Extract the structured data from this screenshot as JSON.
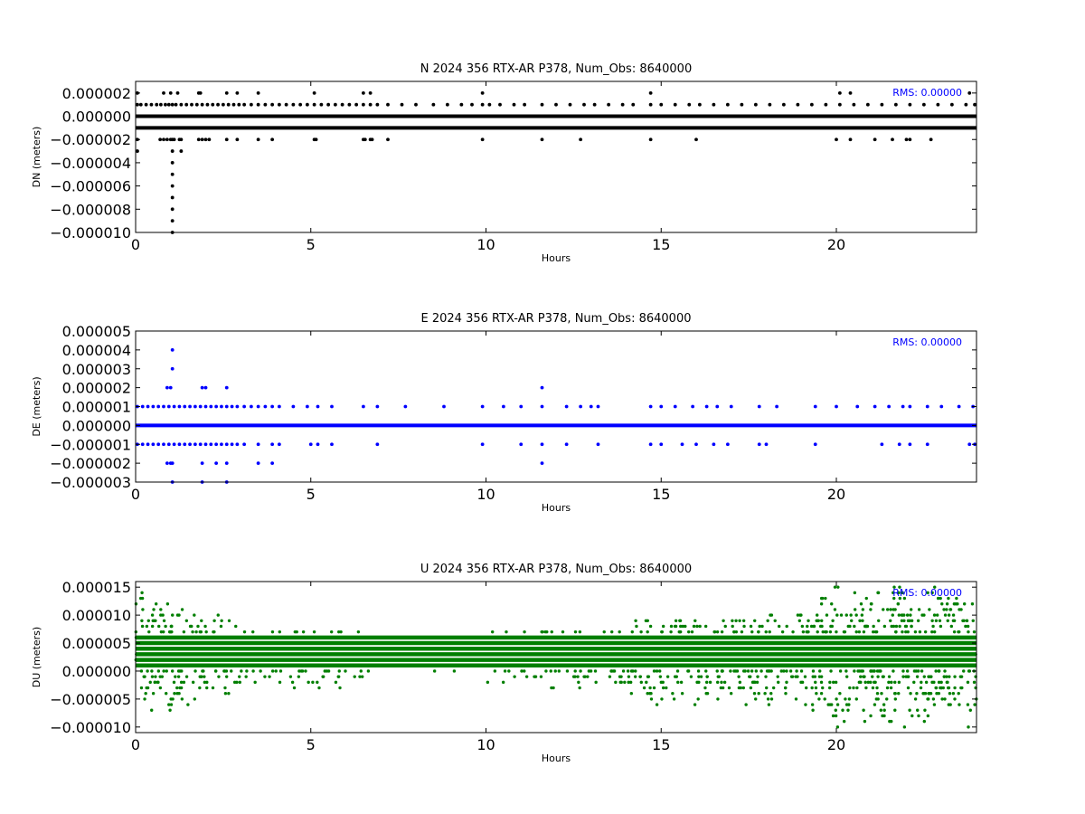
{
  "figure": {
    "background": "#ffffff"
  },
  "chart_data": [
    {
      "type": "scatter",
      "title": "N 2024 356 RTX-AR  P378, Num_Obs: 8640000",
      "xlabel": "Hours",
      "ylabel": "DN (meters)",
      "xlim": [
        0,
        24
      ],
      "ylim": [
        -1e-05,
        3e-06
      ],
      "xticks": [
        0,
        5,
        10,
        15,
        20
      ],
      "xtick_labels": [
        "0",
        "5",
        "10",
        "15",
        "20"
      ],
      "yticks": [
        2e-06,
        0,
        -2e-06,
        -4e-06,
        -6e-06,
        -8e-06,
        -1e-05
      ],
      "ytick_labels": [
        "0.000002",
        "0.000000",
        "−0.000002",
        "−0.000004",
        "−0.000006",
        "−0.000008",
        "−0.000010"
      ],
      "grid": false,
      "color": "#000000",
      "annotation": "RMS:  0.00000",
      "annotation_color": "#0000ff",
      "series": [
        {
          "dense_levels": [
            0,
            -1e-06
          ]
        },
        {
          "sparse": [
            {
              "y": 1e-06,
              "x": [
                0.05,
                0.15,
                0.3,
                0.45,
                0.6,
                0.72,
                0.85,
                0.95,
                1.05,
                1.15,
                1.3,
                1.45,
                1.6,
                1.75,
                1.9,
                2.05,
                2.2,
                2.35,
                2.5,
                2.65,
                2.8,
                2.95,
                3.1,
                3.3,
                3.5,
                3.7,
                3.9,
                4.1,
                4.3,
                4.5,
                4.7,
                4.9,
                5.1,
                5.3,
                5.5,
                5.7,
                5.9,
                6.1,
                6.3,
                6.5,
                6.7,
                6.9,
                7.2,
                7.6,
                8.0,
                8.5,
                8.9,
                9.3,
                9.6,
                9.9,
                10.1,
                10.4,
                10.8,
                11.1,
                11.6,
                12.0,
                12.4,
                12.8,
                13.1,
                13.5,
                13.9,
                14.2,
                14.7,
                15.0,
                15.4,
                15.8,
                16.1,
                16.5,
                16.9,
                17.3,
                17.7,
                18.1,
                18.5,
                18.9,
                19.3,
                19.7,
                20.1,
                20.5,
                20.9,
                21.3,
                21.7,
                22.1,
                22.5,
                22.9,
                23.3,
                23.7,
                23.95
              ]
            },
            {
              "y": 2e-06,
              "x": [
                0.05,
                0.8,
                1.0,
                1.2,
                1.8,
                1.85,
                2.6,
                2.9,
                3.5,
                5.1,
                6.5,
                6.7,
                9.9,
                14.7,
                20.1,
                20.4,
                23.8
              ]
            },
            {
              "y": -2e-06,
              "x": [
                0.05,
                0.7,
                0.8,
                0.9,
                1.0,
                1.05,
                1.1,
                1.25,
                1.3,
                1.8,
                1.9,
                2.0,
                2.1,
                2.6,
                2.9,
                3.5,
                3.9,
                5.1,
                5.15,
                6.5,
                6.55,
                6.7,
                6.75,
                7.2,
                9.9,
                11.6,
                12.7,
                14.7,
                16.0,
                20.0,
                20.4,
                21.1,
                21.6,
                22.0,
                22.1,
                22.7
              ]
            },
            {
              "y": -3e-06,
              "x": [
                0.05,
                1.05,
                1.3
              ]
            },
            {
              "y": -4e-06,
              "x": [
                1.05
              ]
            },
            {
              "y": -5e-06,
              "x": [
                1.05
              ]
            },
            {
              "y": -6e-06,
              "x": [
                1.05
              ]
            },
            {
              "y": -7e-06,
              "x": [
                1.05
              ]
            },
            {
              "y": -8e-06,
              "x": [
                1.05
              ]
            },
            {
              "y": -9e-06,
              "x": [
                1.05
              ]
            },
            {
              "y": -1e-05,
              "x": [
                1.05
              ]
            }
          ]
        }
      ]
    },
    {
      "type": "scatter",
      "title": "E 2024 356 RTX-AR  P378, Num_Obs: 8640000",
      "xlabel": "Hours",
      "ylabel": "DE (meters)",
      "xlim": [
        0,
        24
      ],
      "ylim": [
        -3e-06,
        5e-06
      ],
      "xticks": [
        0,
        5,
        10,
        15,
        20
      ],
      "xtick_labels": [
        "0",
        "5",
        "10",
        "15",
        "20"
      ],
      "yticks": [
        5e-06,
        4e-06,
        3e-06,
        2e-06,
        1e-06,
        0,
        -1e-06,
        -2e-06,
        -3e-06
      ],
      "ytick_labels": [
        "0.000005",
        "0.000004",
        "0.000003",
        "0.000002",
        "0.000001",
        "0.000000",
        "−0.000001",
        "−0.000002",
        "−0.000003"
      ],
      "grid": false,
      "color": "#0000ff",
      "annotation": "RMS:  0.00000",
      "annotation_color": "#0000ff",
      "series": [
        {
          "dense_levels": [
            0
          ]
        },
        {
          "sparse": [
            {
              "y": 1e-06,
              "x": [
                0.05,
                0.2,
                0.35,
                0.5,
                0.65,
                0.8,
                0.95,
                1.1,
                1.25,
                1.4,
                1.55,
                1.7,
                1.85,
                2.0,
                2.15,
                2.3,
                2.45,
                2.6,
                2.75,
                2.9,
                3.1,
                3.3,
                3.5,
                3.7,
                3.9,
                4.1,
                4.5,
                4.9,
                5.2,
                5.6,
                6.5,
                6.9,
                7.7,
                8.8,
                9.9,
                10.5,
                11.0,
                11.6,
                12.3,
                12.7,
                13.0,
                13.2,
                14.7,
                15.0,
                15.4,
                15.9,
                16.3,
                16.6,
                17.0,
                17.8,
                18.3,
                19.4,
                20.0,
                20.6,
                21.1,
                21.5,
                21.9,
                22.1,
                22.6,
                23.0,
                23.5,
                23.9
              ]
            },
            {
              "y": 2e-06,
              "x": [
                0.9,
                1.0,
                1.9,
                2.0,
                2.6,
                11.6
              ]
            },
            {
              "y": 3e-06,
              "x": [
                1.05
              ]
            },
            {
              "y": 4e-06,
              "x": [
                1.05
              ]
            },
            {
              "y": -1e-06,
              "x": [
                0.05,
                0.2,
                0.35,
                0.5,
                0.65,
                0.8,
                0.95,
                1.1,
                1.25,
                1.4,
                1.55,
                1.7,
                1.85,
                2.0,
                2.15,
                2.3,
                2.45,
                2.6,
                2.75,
                2.9,
                3.1,
                3.5,
                3.9,
                4.1,
                5.0,
                5.2,
                5.6,
                6.9,
                9.9,
                11.0,
                11.6,
                12.3,
                13.2,
                14.7,
                15.0,
                15.6,
                16.0,
                16.5,
                16.9,
                17.8,
                18.0,
                19.4,
                21.3,
                21.8,
                22.1,
                22.6,
                23.8,
                23.95
              ]
            },
            {
              "y": -2e-06,
              "x": [
                0.9,
                1.0,
                1.05,
                1.9,
                2.3,
                2.6,
                3.5,
                3.9,
                11.6
              ]
            },
            {
              "y": -3e-06,
              "x": [
                1.05,
                1.9,
                2.6
              ]
            }
          ]
        }
      ]
    },
    {
      "type": "scatter",
      "title": "U 2024 356 RTX-AR  P378, Num_Obs: 8640000",
      "xlabel": "Hours",
      "ylabel": "DU (meters)",
      "xlim": [
        0,
        24
      ],
      "ylim": [
        -1.1e-05,
        1.6e-05
      ],
      "xticks": [
        0,
        5,
        10,
        15,
        20
      ],
      "xtick_labels": [
        "0",
        "5",
        "10",
        "15",
        "20"
      ],
      "yticks": [
        1.5e-05,
        1e-05,
        5e-06,
        0,
        -5e-06,
        -1e-05
      ],
      "ytick_labels": [
        "0.000015",
        "0.000010",
        "0.000005",
        "0.000000",
        "−0.000005",
        "−0.000010"
      ],
      "grid": false,
      "color": "#007f00",
      "annotation": "RMS:  0.00000",
      "annotation_color": "#0000ff",
      "series": [
        {
          "dense_levels": [
            2e-06,
            3e-06,
            4e-06,
            5e-06,
            6e-06,
            1e-06
          ]
        },
        {
          "scatter_envelope": [
            {
              "x": [
                0,
                1.5
              ],
              "ymin": -7e-06,
              "ymax": 1.4e-05
            },
            {
              "x": [
                1.5,
                3.0
              ],
              "ymin": -5e-06,
              "ymax": 1e-05
            },
            {
              "x": [
                3.0,
                6.5
              ],
              "ymin": -3e-06,
              "ymax": 7e-06
            },
            {
              "x": [
                6.5,
                10.0
              ],
              "ymin": 0,
              "ymax": 5e-06
            },
            {
              "x": [
                10.0,
                14.0
              ],
              "ymin": -3e-06,
              "ymax": 7e-06
            },
            {
              "x": [
                14.0,
                17.5
              ],
              "ymin": -6e-06,
              "ymax": 9e-06
            },
            {
              "x": [
                17.5,
                19.5
              ],
              "ymin": -7e-06,
              "ymax": 1e-05
            },
            {
              "x": [
                19.5,
                24.0
              ],
              "ymin": -1e-05,
              "ymax": 1.5e-05
            }
          ]
        }
      ]
    }
  ]
}
